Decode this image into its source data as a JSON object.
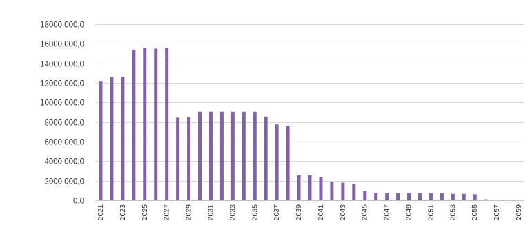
{
  "chart_data": {
    "type": "bar",
    "title": "",
    "xlabel": "",
    "ylabel": "",
    "ylim": [
      0,
      18000000
    ],
    "y_tick_values": [
      0,
      2000000,
      4000000,
      6000000,
      8000000,
      10000000,
      12000000,
      14000000,
      16000000,
      18000000
    ],
    "y_tick_labels": [
      "0,0",
      "2000 000,0",
      "4000 000,0",
      "6000 000,0",
      "8000 000,0",
      "10000 000,0",
      "12000 000,0",
      "14000 000,0",
      "16000 000,0",
      "18000 000,0"
    ],
    "x_tick_labels": [
      "2021",
      "2023",
      "2025",
      "2027",
      "2029",
      "2031",
      "2033",
      "2035",
      "2037",
      "2039",
      "2041",
      "2043",
      "2045",
      "2047",
      "2049",
      "2051",
      "2053",
      "2055",
      "2057",
      "2059"
    ],
    "categories": [
      "2021",
      "2022",
      "2023",
      "2024",
      "2025",
      "2026",
      "2027",
      "2028",
      "2029",
      "2030",
      "2031",
      "2032",
      "2033",
      "2034",
      "2035",
      "2036",
      "2037",
      "2038",
      "2039",
      "2040",
      "2041",
      "2042",
      "2043",
      "2044",
      "2045",
      "2046",
      "2047",
      "2048",
      "2049",
      "2050",
      "2051",
      "2052",
      "2053",
      "2054",
      "2055",
      "2056",
      "2057",
      "2058",
      "2059"
    ],
    "values": [
      12200000,
      12600000,
      12600000,
      15400000,
      15600000,
      15500000,
      15600000,
      8450000,
      8500000,
      9050000,
      9050000,
      9050000,
      9050000,
      9050000,
      9050000,
      8550000,
      7750000,
      7600000,
      2550000,
      2550000,
      2400000,
      1850000,
      1800000,
      1700000,
      950000,
      750000,
      700000,
      700000,
      700000,
      700000,
      700000,
      700000,
      650000,
      650000,
      600000,
      100000,
      20000,
      20000,
      20000
    ],
    "grid": true,
    "legend": "none",
    "colors": {
      "bar": "#7f62a8",
      "grid": "#d9d9d9",
      "axis": "#bfbfbf"
    }
  }
}
